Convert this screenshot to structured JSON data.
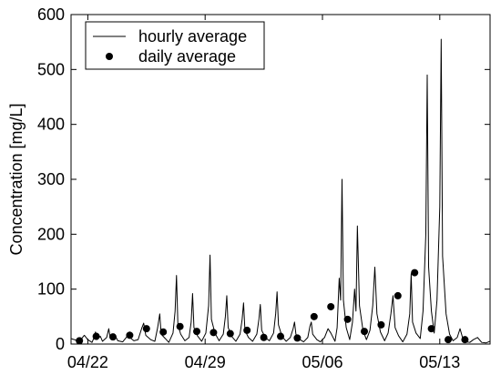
{
  "chart_data": {
    "type": "line",
    "title": "",
    "xlabel": "",
    "ylabel": "Concentration [mg/L]",
    "ylim": [
      0,
      600
    ],
    "yticks": [
      0,
      100,
      200,
      300,
      400,
      500,
      600
    ],
    "xlim": [
      "04/21",
      "05/16"
    ],
    "xticks": [
      {
        "date": "04/22",
        "label": "04/22"
      },
      {
        "date": "04/29",
        "label": "04/29"
      },
      {
        "date": "05/06",
        "label": "05/06"
      },
      {
        "date": "05/13",
        "label": "05/13"
      }
    ],
    "grid": false,
    "legend_position": "top-left",
    "series": [
      {
        "name": "hourly average",
        "style": "line",
        "color": "#000000",
        "points": [
          [
            "04/21 00:00",
            10
          ],
          [
            "04/21 12:00",
            5
          ],
          [
            "04/21 19:00",
            16
          ],
          [
            "04/22 00:00",
            8
          ],
          [
            "04/22 06:00",
            3
          ],
          [
            "04/22 09:00",
            12
          ],
          [
            "04/22 11:00",
            22
          ],
          [
            "04/22 13:00",
            8
          ],
          [
            "04/22 18:00",
            14
          ],
          [
            "04/22 21:00",
            5
          ],
          [
            "04/23 03:00",
            12
          ],
          [
            "04/23 06:00",
            28
          ],
          [
            "04/23 08:00",
            12
          ],
          [
            "04/23 14:00",
            18
          ],
          [
            "04/23 19:00",
            6
          ],
          [
            "04/24 02:00",
            4
          ],
          [
            "04/24 07:00",
            12
          ],
          [
            "04/24 12:00",
            22
          ],
          [
            "04/24 14:00",
            10
          ],
          [
            "04/24 18:00",
            6
          ],
          [
            "04/25 00:00",
            8
          ],
          [
            "04/25 05:00",
            28
          ],
          [
            "04/25 08:00",
            38
          ],
          [
            "04/25 11:00",
            16
          ],
          [
            "04/25 18:00",
            8
          ],
          [
            "04/26 00:00",
            5
          ],
          [
            "04/26 04:00",
            30
          ],
          [
            "04/26 07:00",
            55
          ],
          [
            "04/26 09:00",
            18
          ],
          [
            "04/26 15:00",
            10
          ],
          [
            "04/26 20:00",
            3
          ],
          [
            "04/27 02:00",
            20
          ],
          [
            "04/27 05:00",
            60
          ],
          [
            "04/27 07:00",
            125
          ],
          [
            "04/27 09:00",
            35
          ],
          [
            "04/27 13:00",
            18
          ],
          [
            "04/27 19:00",
            6
          ],
          [
            "04/28 01:00",
            12
          ],
          [
            "04/28 04:00",
            40
          ],
          [
            "04/28 06:00",
            92
          ],
          [
            "04/28 08:00",
            30
          ],
          [
            "04/28 13:00",
            15
          ],
          [
            "04/28 19:00",
            5
          ],
          [
            "04/29 01:00",
            20
          ],
          [
            "04/29 05:00",
            70
          ],
          [
            "04/29 07:00",
            162
          ],
          [
            "04/29 09:00",
            45
          ],
          [
            "04/29 14:00",
            20
          ],
          [
            "04/29 20:00",
            6
          ],
          [
            "04/30 02:00",
            18
          ],
          [
            "04/30 05:00",
            50
          ],
          [
            "04/30 07:00",
            88
          ],
          [
            "04/30 09:00",
            30
          ],
          [
            "04/30 14:00",
            14
          ],
          [
            "04/30 20:00",
            5
          ],
          [
            "05/01 02:00",
            18
          ],
          [
            "05/01 05:00",
            45
          ],
          [
            "05/01 07:00",
            75
          ],
          [
            "05/01 09:00",
            25
          ],
          [
            "05/01 14:00",
            12
          ],
          [
            "05/01 20:00",
            5
          ],
          [
            "05/02 02:00",
            18
          ],
          [
            "05/02 05:00",
            45
          ],
          [
            "05/02 07:00",
            72
          ],
          [
            "05/02 09:00",
            25
          ],
          [
            "05/02 14:00",
            12
          ],
          [
            "05/02 20:00",
            6
          ],
          [
            "05/03 02:00",
            20
          ],
          [
            "05/03 05:00",
            55
          ],
          [
            "05/03 07:00",
            95
          ],
          [
            "05/03 09:00",
            35
          ],
          [
            "05/03 14:00",
            14
          ],
          [
            "05/03 20:00",
            5
          ],
          [
            "05/04 02:00",
            12
          ],
          [
            "05/04 06:00",
            28
          ],
          [
            "05/04 08:00",
            40
          ],
          [
            "05/04 10:00",
            18
          ],
          [
            "05/04 16:00",
            8
          ],
          [
            "05/04 21:00",
            4
          ],
          [
            "05/05 03:00",
            12
          ],
          [
            "05/05 06:00",
            32
          ],
          [
            "05/05 08:00",
            40
          ],
          [
            "05/05 10:00",
            18
          ],
          [
            "05/05 16:00",
            8
          ],
          [
            "05/05 21:00",
            4
          ],
          [
            "05/06 03:00",
            12
          ],
          [
            "05/06 08:00",
            28
          ],
          [
            "05/06 12:00",
            20
          ],
          [
            "05/06 18:00",
            5
          ],
          [
            "05/06 21:00",
            30
          ],
          [
            "05/07 00:00",
            120
          ],
          [
            "05/07 02:00",
            80
          ],
          [
            "05/07 04:00",
            300
          ],
          [
            "05/07 06:00",
            80
          ],
          [
            "05/07 10:00",
            30
          ],
          [
            "05/07 15:00",
            8
          ],
          [
            "05/07 19:00",
            40
          ],
          [
            "05/07 22:00",
            100
          ],
          [
            "05/08 00:00",
            60
          ],
          [
            "05/08 02:00",
            215
          ],
          [
            "05/08 05:00",
            70
          ],
          [
            "05/08 10:00",
            25
          ],
          [
            "05/08 15:00",
            8
          ],
          [
            "05/08 20:00",
            25
          ],
          [
            "05/09 00:00",
            70
          ],
          [
            "05/09 03:00",
            140
          ],
          [
            "05/09 06:00",
            55
          ],
          [
            "05/09 11:00",
            22
          ],
          [
            "05/09 17:00",
            6
          ],
          [
            "05/09 22:00",
            20
          ],
          [
            "05/10 02:00",
            55
          ],
          [
            "05/10 05:00",
            88
          ],
          [
            "05/10 08:00",
            30
          ],
          [
            "05/10 13:00",
            15
          ],
          [
            "05/10 19:00",
            4
          ],
          [
            "05/11 01:00",
            18
          ],
          [
            "05/11 05:00",
            55
          ],
          [
            "05/11 07:00",
            128
          ],
          [
            "05/11 09:00",
            40
          ],
          [
            "05/11 14:00",
            20
          ],
          [
            "05/11 20:00",
            10
          ],
          [
            "05/12 00:00",
            60
          ],
          [
            "05/12 04:00",
            200
          ],
          [
            "05/12 06:00",
            490
          ],
          [
            "05/12 08:00",
            140
          ],
          [
            "05/12 12:00",
            60
          ],
          [
            "05/12 16:00",
            20
          ],
          [
            "05/12 20:00",
            80
          ],
          [
            "05/13 00:00",
            250
          ],
          [
            "05/13 02:00",
            555
          ],
          [
            "05/13 04:00",
            160
          ],
          [
            "05/13 09:00",
            55
          ],
          [
            "05/13 14:00",
            18
          ],
          [
            "05/13 19:00",
            6
          ],
          [
            "05/14 01:00",
            12
          ],
          [
            "05/14 05:00",
            28
          ],
          [
            "05/14 09:00",
            10
          ],
          [
            "05/14 14:00",
            4
          ],
          [
            "05/14 19:00",
            3
          ],
          [
            "05/15 00:00",
            8
          ],
          [
            "05/15 06:00",
            12
          ],
          [
            "05/15 12:00",
            3
          ],
          [
            "05/15 18:00",
            2
          ],
          [
            "05/16 00:00",
            5
          ]
        ]
      },
      {
        "name": "daily average",
        "style": "markers",
        "color": "#000000",
        "points": [
          [
            "04/21 12:00",
            6
          ],
          [
            "04/22 12:00",
            14
          ],
          [
            "04/23 12:00",
            13
          ],
          [
            "04/24 12:00",
            16
          ],
          [
            "04/25 12:00",
            28
          ],
          [
            "04/26 12:00",
            22
          ],
          [
            "04/27 12:00",
            32
          ],
          [
            "04/28 12:00",
            23
          ],
          [
            "04/29 12:00",
            21
          ],
          [
            "04/30 12:00",
            19
          ],
          [
            "05/01 12:00",
            25
          ],
          [
            "05/02 12:00",
            12
          ],
          [
            "05/03 12:00",
            14
          ],
          [
            "05/04 12:00",
            11
          ],
          [
            "05/05 12:00",
            50
          ],
          [
            "05/06 12:00",
            68
          ],
          [
            "05/07 12:00",
            45
          ],
          [
            "05/08 12:00",
            23
          ],
          [
            "05/09 12:00",
            35
          ],
          [
            "05/10 12:00",
            88
          ],
          [
            "05/11 12:00",
            130
          ],
          [
            "05/12 12:00",
            28
          ],
          [
            "05/13 12:00",
            8
          ],
          [
            "05/14 12:00",
            8
          ]
        ]
      }
    ]
  }
}
